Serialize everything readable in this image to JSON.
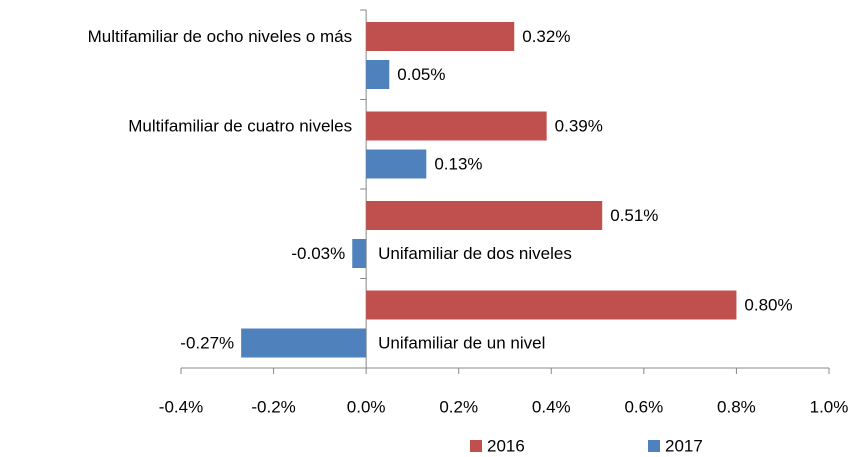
{
  "chart_data": {
    "type": "bar",
    "orientation": "horizontal",
    "categories": [
      "Multifamiliar de ocho niveles o más",
      "Multifamiliar de cuatro niveles",
      "Unifamiliar de dos niveles",
      "Unifamiliar de un nivel"
    ],
    "series": [
      {
        "name": "2016",
        "color": "#c0504d",
        "values": [
          0.32,
          0.39,
          0.51,
          0.8
        ],
        "value_labels": [
          "0.32%",
          "0.39%",
          "0.51%",
          "0.80%"
        ]
      },
      {
        "name": "2017",
        "color": "#4f81bd",
        "values": [
          0.05,
          0.13,
          -0.03,
          -0.27
        ],
        "value_labels": [
          "0.05%",
          "0.13%",
          "-0.03%",
          "-0.27%"
        ]
      }
    ],
    "xlim": [
      -0.4,
      1.0
    ],
    "xticks": [
      {
        "value": -0.4,
        "label": "-0.4%"
      },
      {
        "value": -0.2,
        "label": "-0.2%"
      },
      {
        "value": 0.0,
        "label": "0.0%"
      },
      {
        "value": 0.2,
        "label": "0.2%"
      },
      {
        "value": 0.4,
        "label": "0.4%"
      },
      {
        "value": 0.6,
        "label": "0.6%"
      },
      {
        "value": 0.8,
        "label": "0.8%"
      },
      {
        "value": 1.0,
        "label": "1.0%"
      }
    ],
    "legend": "bottom",
    "grid": false
  }
}
